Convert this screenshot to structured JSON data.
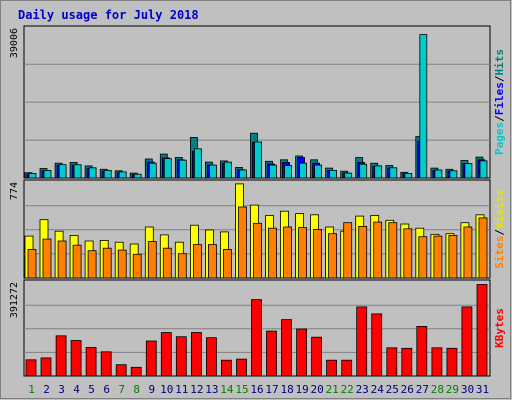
{
  "chart_data": {
    "type": "bar",
    "title": "Daily usage for July 2018",
    "colors": {
      "background": "#c0c0c0",
      "title": "#0000cc",
      "hits": "#00cccc",
      "hits_text": "#008080",
      "files": "#0000ff",
      "pages": "#008080",
      "pages_text": "#00cccc",
      "visits": "#ffff00",
      "visits_text": "#e6e600",
      "sites": "#ff8000",
      "kbytes": "#ff0000",
      "weekday": "#000080",
      "weekend": "#008000"
    },
    "categories": [
      "1",
      "2",
      "3",
      "4",
      "5",
      "6",
      "7",
      "8",
      "9",
      "10",
      "11",
      "12",
      "13",
      "14",
      "15",
      "16",
      "17",
      "18",
      "19",
      "20",
      "21",
      "22",
      "23",
      "24",
      "25",
      "26",
      "27",
      "28",
      "29",
      "30",
      "31"
    ],
    "weekend_days": [
      "1",
      "7",
      "8",
      "14",
      "15",
      "21",
      "22",
      "28",
      "29"
    ],
    "panels": [
      {
        "max_label": "39006",
        "ymax": 39006,
        "labels": [
          "Pages",
          "/",
          "Files",
          "/",
          "Hits"
        ],
        "series": [
          {
            "name": "Pages",
            "values": [
              1400,
              2500,
              3900,
              4100,
              3200,
              2300,
              1900,
              1300,
              5000,
              6300,
              5400,
              10700,
              4200,
              4500,
              2800,
              11800,
              4400,
              4800,
              5800,
              4800,
              2600,
              1800,
              5400,
              3900,
              3300,
              1500,
              10900,
              2600,
              2300,
              4600,
              5500
            ]
          },
          {
            "name": "Files",
            "values": [
              1000,
              1900,
              3300,
              3400,
              2500,
              1800,
              1400,
              900,
              4200,
              5300,
              4800,
              7000,
              3400,
              3900,
              2200,
              9400,
              3700,
              4100,
              5400,
              3900,
              2000,
              1300,
              4100,
              3100,
              2600,
              1100,
              9700,
              2000,
              1800,
              3800,
              4800
            ]
          },
          {
            "name": "Hits",
            "values": [
              1200,
              2000,
              3500,
              3500,
              2700,
              2000,
              1600,
              1000,
              3900,
              5100,
              4700,
              7700,
              3400,
              4200,
              2100,
              9500,
              3400,
              3300,
              3900,
              3400,
              2000,
              1300,
              3600,
              3200,
              2700,
              1200,
              37800,
              2100,
              1900,
              3800,
              4500
            ]
          }
        ]
      },
      {
        "max_label": "774",
        "ymax": 774,
        "labels": [
          "Sites",
          "/",
          "Visits"
        ],
        "series": [
          {
            "name": "Visits",
            "values": [
              345,
              480,
              385,
              350,
              305,
              310,
              295,
              280,
              420,
              355,
              295,
              435,
              395,
              380,
              775,
              600,
              515,
              550,
              530,
              520,
              420,
              385,
              510,
              515,
              475,
              445,
              410,
              360,
              365,
              455,
              520
            ]
          },
          {
            "name": "Sites",
            "values": [
              235,
              320,
              305,
              270,
              225,
              245,
              230,
              195,
              300,
              245,
              200,
              275,
              275,
              235,
              585,
              450,
              410,
              420,
              415,
              400,
              365,
              455,
              425,
              460,
              455,
              405,
              340,
              345,
              350,
              420,
              495
            ]
          }
        ]
      },
      {
        "max_label": "391272",
        "ymax": 391272,
        "labels": [
          "KBytes"
        ],
        "series": [
          {
            "name": "KBytes",
            "values": [
              69000,
              77000,
              171000,
              151000,
              121000,
              103000,
              48000,
              37000,
              149000,
              185000,
              167000,
              185000,
              163000,
              67000,
              72000,
              325000,
              191000,
              240000,
              200000,
              165000,
              67000,
              67000,
              294000,
              264000,
              120000,
              118000,
              211000,
              120000,
              118000,
              294000,
              389000
            ]
          }
        ]
      }
    ]
  }
}
